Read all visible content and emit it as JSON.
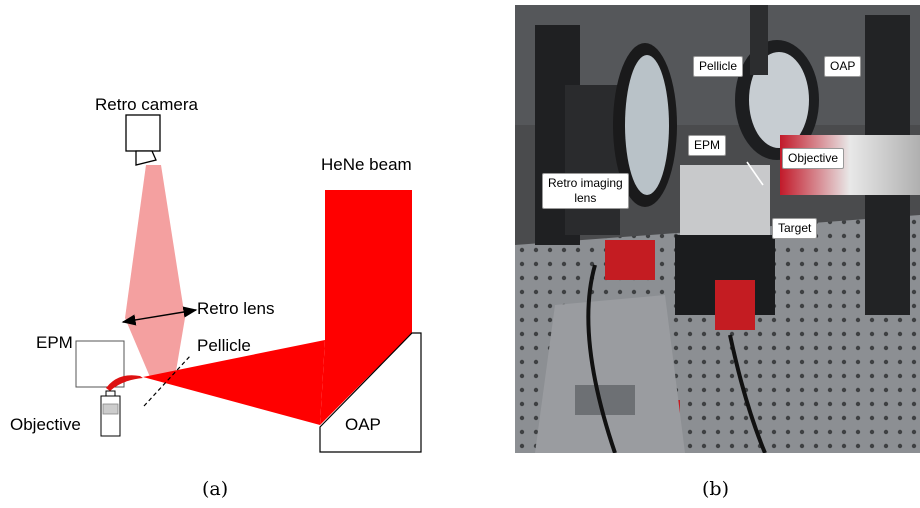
{
  "diagram": {
    "labels": {
      "retro_camera": "Retro camera",
      "hene_beam": "HeNe beam",
      "retro_lens": "Retro lens",
      "epm": "EPM",
      "pellicle": "Pellicle",
      "objective": "Objective",
      "oap": "OAP"
    },
    "colors": {
      "hene_beam": "#ff0000",
      "retro_path": "#f4a0a0",
      "outline": "#000000"
    }
  },
  "photo": {
    "labels": {
      "pellicle": "Pellicle",
      "oap": "OAP",
      "epm": "EPM",
      "objective": "Objective",
      "retro_imaging_lens_1": "Retro imaging",
      "retro_imaging_lens_2": "lens",
      "target": "Target"
    }
  },
  "captions": {
    "a": "(a)",
    "b": "(b)"
  }
}
